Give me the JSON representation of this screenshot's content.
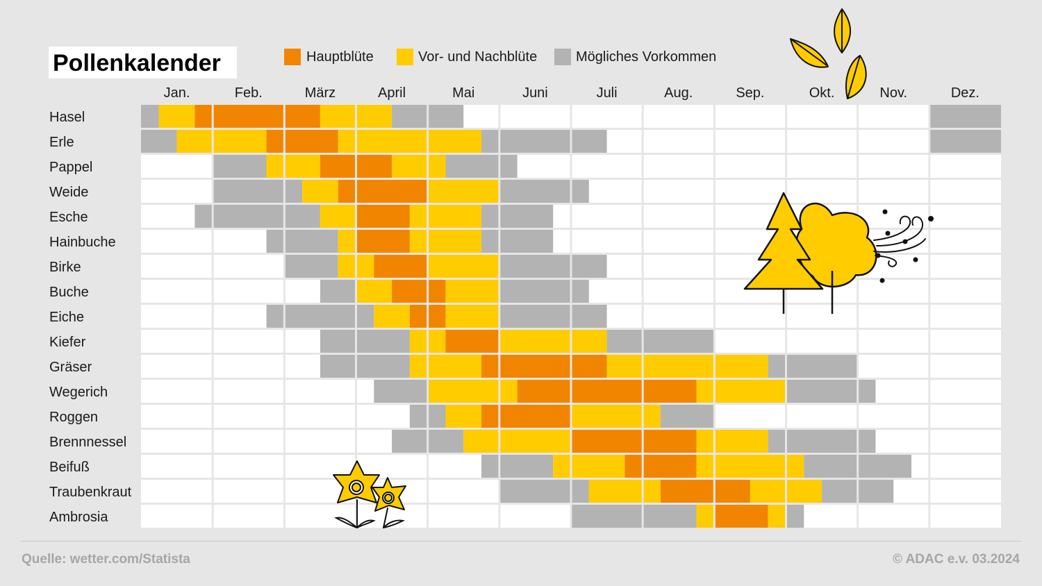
{
  "title": "Pollenkalender",
  "legend": [
    {
      "label": "Hauptblüte",
      "color": "#f28500"
    },
    {
      "label": "Vor- und Nachblüte",
      "color": "#ffcc00"
    },
    {
      "label": "Mögliches Vorkommen",
      "color": "#b3b3b3"
    }
  ],
  "footer": {
    "source": "Quelle: wetter.com/Statista",
    "copyright": "© ADAC e.v. 03.2024"
  },
  "chart_data": {
    "type": "heatmap",
    "title": "Pollenkalender",
    "time_unit": "Monatsviertel (4 je Monat)",
    "months": [
      "Jan.",
      "Feb.",
      "März",
      "April",
      "Mai",
      "Juni",
      "Juli",
      "Aug.",
      "Sep.",
      "Okt.",
      "Nov.",
      "Dez."
    ],
    "levels": {
      "H": "Hauptblüte",
      "V": "Vor- und Nachblüte",
      "M": "Mögliches Vorkommen"
    },
    "plants": [
      {
        "name": "Hasel",
        "segments": [
          {
            "level": "M",
            "start": 0,
            "end": 1
          },
          {
            "level": "V",
            "start": 1,
            "end": 3
          },
          {
            "level": "H",
            "start": 3,
            "end": 10
          },
          {
            "level": "V",
            "start": 10,
            "end": 14
          },
          {
            "level": "M",
            "start": 14,
            "end": 18
          },
          {
            "level": "M",
            "start": 44,
            "end": 48
          }
        ]
      },
      {
        "name": "Erle",
        "segments": [
          {
            "level": "M",
            "start": 0,
            "end": 2
          },
          {
            "level": "V",
            "start": 2,
            "end": 7
          },
          {
            "level": "H",
            "start": 7,
            "end": 11
          },
          {
            "level": "V",
            "start": 11,
            "end": 19
          },
          {
            "level": "M",
            "start": 19,
            "end": 26
          },
          {
            "level": "M",
            "start": 44,
            "end": 48
          }
        ]
      },
      {
        "name": "Pappel",
        "segments": [
          {
            "level": "M",
            "start": 4,
            "end": 7
          },
          {
            "level": "V",
            "start": 7,
            "end": 10
          },
          {
            "level": "H",
            "start": 10,
            "end": 14
          },
          {
            "level": "V",
            "start": 14,
            "end": 17
          },
          {
            "level": "M",
            "start": 17,
            "end": 21
          }
        ]
      },
      {
        "name": "Weide",
        "segments": [
          {
            "level": "M",
            "start": 4,
            "end": 9
          },
          {
            "level": "V",
            "start": 9,
            "end": 11
          },
          {
            "level": "H",
            "start": 11,
            "end": 16
          },
          {
            "level": "V",
            "start": 16,
            "end": 20
          },
          {
            "level": "M",
            "start": 20,
            "end": 25
          }
        ]
      },
      {
        "name": "Esche",
        "segments": [
          {
            "level": "M",
            "start": 3,
            "end": 10
          },
          {
            "level": "V",
            "start": 10,
            "end": 12
          },
          {
            "level": "H",
            "start": 12,
            "end": 15
          },
          {
            "level": "V",
            "start": 15,
            "end": 19
          },
          {
            "level": "M",
            "start": 19,
            "end": 23
          }
        ]
      },
      {
        "name": "Hainbuche",
        "segments": [
          {
            "level": "M",
            "start": 7,
            "end": 11
          },
          {
            "level": "V",
            "start": 11,
            "end": 12
          },
          {
            "level": "H",
            "start": 12,
            "end": 15
          },
          {
            "level": "V",
            "start": 15,
            "end": 19
          },
          {
            "level": "M",
            "start": 19,
            "end": 23
          }
        ]
      },
      {
        "name": "Birke",
        "segments": [
          {
            "level": "M",
            "start": 8,
            "end": 11
          },
          {
            "level": "V",
            "start": 11,
            "end": 13
          },
          {
            "level": "H",
            "start": 13,
            "end": 16
          },
          {
            "level": "V",
            "start": 16,
            "end": 20
          },
          {
            "level": "M",
            "start": 20,
            "end": 26
          }
        ]
      },
      {
        "name": "Buche",
        "segments": [
          {
            "level": "M",
            "start": 10,
            "end": 12
          },
          {
            "level": "V",
            "start": 12,
            "end": 14
          },
          {
            "level": "H",
            "start": 14,
            "end": 17
          },
          {
            "level": "V",
            "start": 17,
            "end": 20
          },
          {
            "level": "M",
            "start": 20,
            "end": 25
          }
        ]
      },
      {
        "name": "Eiche",
        "segments": [
          {
            "level": "M",
            "start": 7,
            "end": 13
          },
          {
            "level": "V",
            "start": 13,
            "end": 15
          },
          {
            "level": "H",
            "start": 15,
            "end": 17
          },
          {
            "level": "V",
            "start": 17,
            "end": 20
          },
          {
            "level": "M",
            "start": 20,
            "end": 26
          }
        ]
      },
      {
        "name": "Kiefer",
        "segments": [
          {
            "level": "M",
            "start": 10,
            "end": 15
          },
          {
            "level": "V",
            "start": 15,
            "end": 17
          },
          {
            "level": "H",
            "start": 17,
            "end": 20
          },
          {
            "level": "V",
            "start": 20,
            "end": 26
          },
          {
            "level": "M",
            "start": 26,
            "end": 32
          }
        ]
      },
      {
        "name": "Gräser",
        "segments": [
          {
            "level": "M",
            "start": 10,
            "end": 15
          },
          {
            "level": "V",
            "start": 15,
            "end": 19
          },
          {
            "level": "H",
            "start": 19,
            "end": 26
          },
          {
            "level": "V",
            "start": 26,
            "end": 35
          },
          {
            "level": "M",
            "start": 35,
            "end": 40
          }
        ]
      },
      {
        "name": "Wegerich",
        "segments": [
          {
            "level": "M",
            "start": 13,
            "end": 16
          },
          {
            "level": "V",
            "start": 16,
            "end": 21
          },
          {
            "level": "H",
            "start": 21,
            "end": 31
          },
          {
            "level": "V",
            "start": 31,
            "end": 36
          },
          {
            "level": "M",
            "start": 36,
            "end": 41
          }
        ]
      },
      {
        "name": "Roggen",
        "segments": [
          {
            "level": "M",
            "start": 15,
            "end": 17
          },
          {
            "level": "V",
            "start": 17,
            "end": 19
          },
          {
            "level": "H",
            "start": 19,
            "end": 24
          },
          {
            "level": "V",
            "start": 24,
            "end": 29
          },
          {
            "level": "M",
            "start": 29,
            "end": 32
          }
        ]
      },
      {
        "name": "Brennnessel",
        "segments": [
          {
            "level": "M",
            "start": 14,
            "end": 18
          },
          {
            "level": "V",
            "start": 18,
            "end": 24
          },
          {
            "level": "H",
            "start": 24,
            "end": 31
          },
          {
            "level": "V",
            "start": 31,
            "end": 35
          },
          {
            "level": "M",
            "start": 35,
            "end": 41
          }
        ]
      },
      {
        "name": "Beifuß",
        "segments": [
          {
            "level": "M",
            "start": 19,
            "end": 23
          },
          {
            "level": "V",
            "start": 23,
            "end": 27
          },
          {
            "level": "H",
            "start": 27,
            "end": 31
          },
          {
            "level": "V",
            "start": 31,
            "end": 37
          },
          {
            "level": "M",
            "start": 37,
            "end": 43
          }
        ]
      },
      {
        "name": "Traubenkraut",
        "segments": [
          {
            "level": "M",
            "start": 20,
            "end": 25
          },
          {
            "level": "V",
            "start": 25,
            "end": 29
          },
          {
            "level": "H",
            "start": 29,
            "end": 34
          },
          {
            "level": "V",
            "start": 34,
            "end": 38
          },
          {
            "level": "M",
            "start": 38,
            "end": 42
          }
        ]
      },
      {
        "name": "Ambrosia",
        "segments": [
          {
            "level": "M",
            "start": 24,
            "end": 31
          },
          {
            "level": "V",
            "start": 31,
            "end": 32
          },
          {
            "level": "H",
            "start": 32,
            "end": 35
          },
          {
            "level": "V",
            "start": 35,
            "end": 36
          },
          {
            "level": "M",
            "start": 36,
            "end": 37
          }
        ]
      }
    ]
  }
}
